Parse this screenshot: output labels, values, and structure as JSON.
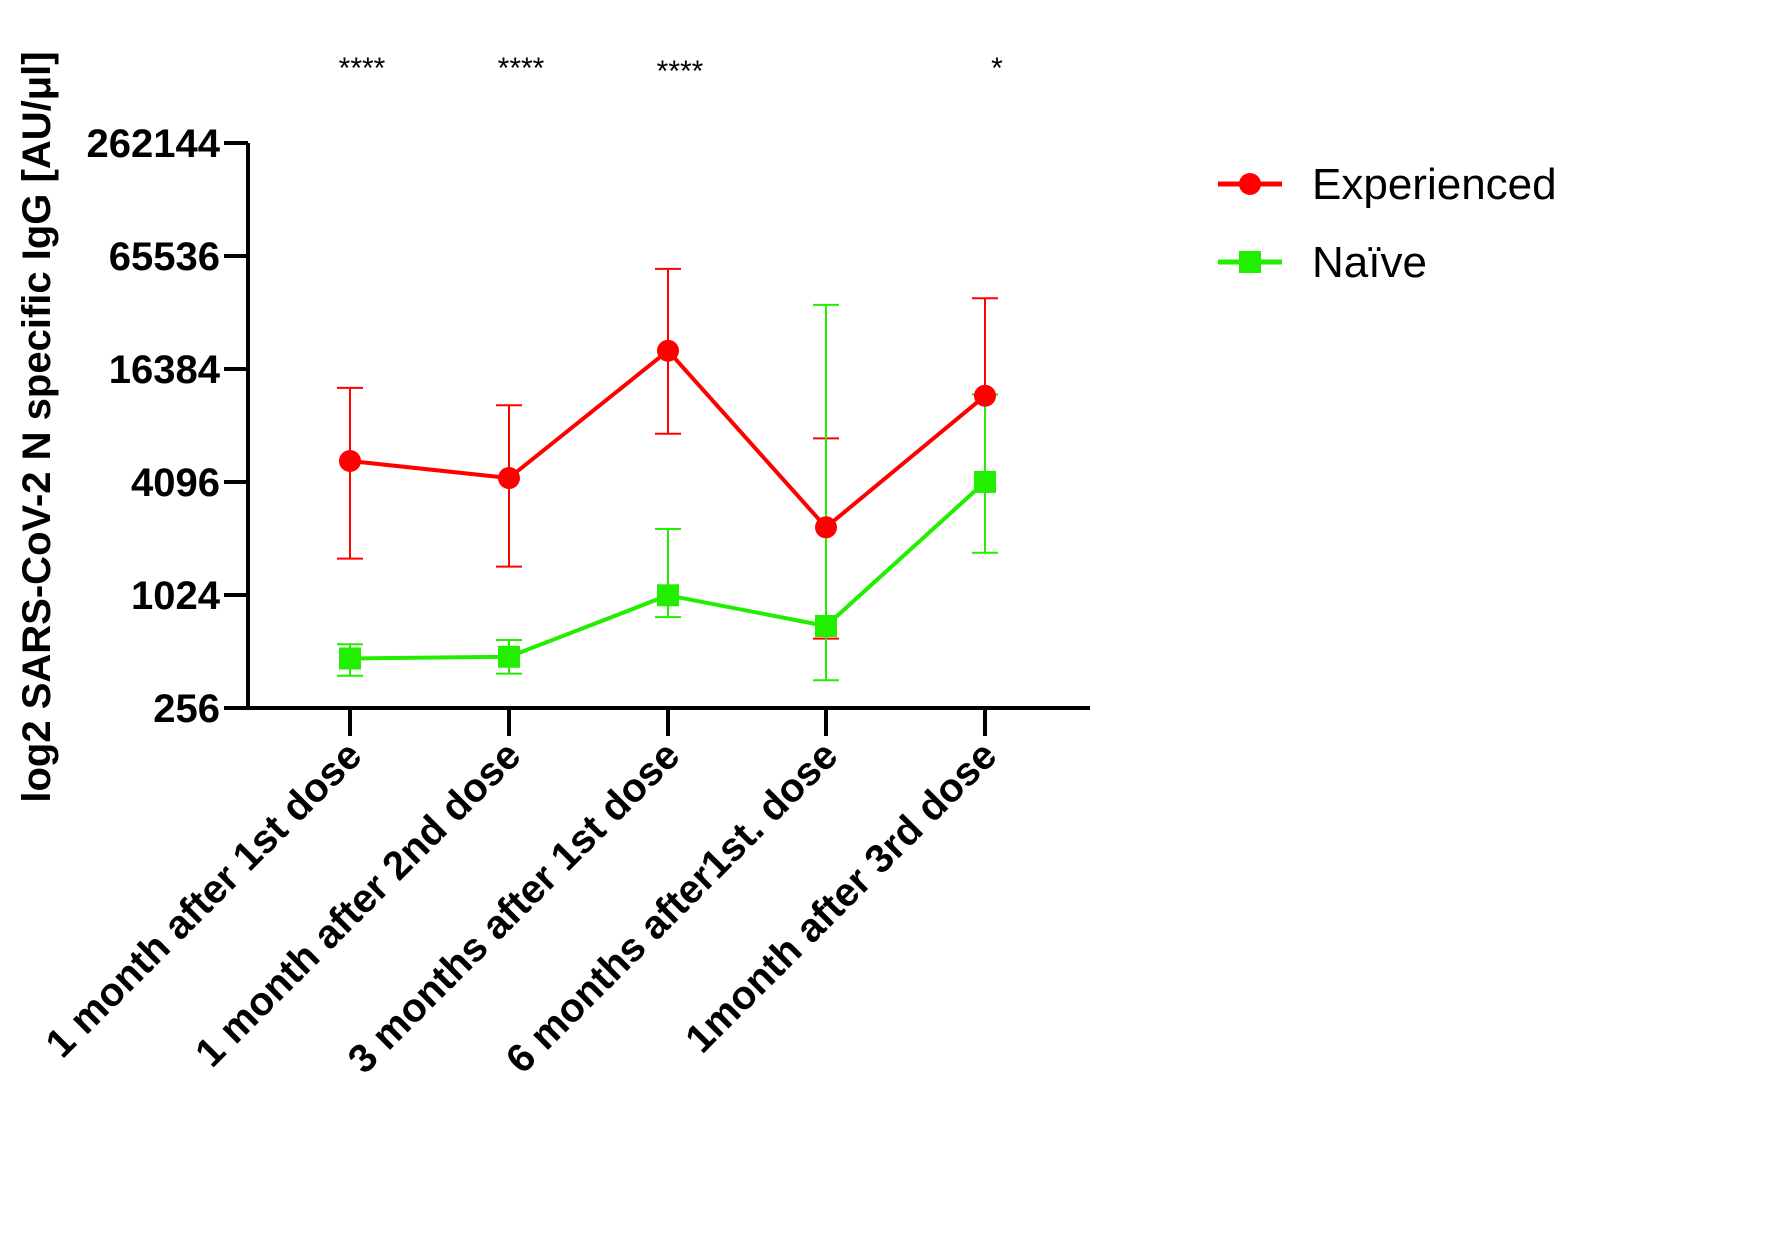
{
  "chart_data": {
    "type": "line",
    "title": "",
    "xlabel": "",
    "ylabel": "log2 SARS-CoV-2 N specific IgG [AU/μl]",
    "y_scale": "log2",
    "ylim": [
      256,
      262144
    ],
    "y_ticks": [
      "262144",
      "65536",
      "16384",
      "4096",
      "1024",
      "256"
    ],
    "y_tick_values": [
      262144,
      65536,
      16384,
      4096,
      1024,
      256
    ],
    "categories": [
      "1 month after 1st dose",
      "1 month after 2nd dose",
      "3 months after 1st dose",
      "6 months after1st. dose",
      "1month after 3rd dose"
    ],
    "significance": [
      "****",
      "****",
      "****",
      "",
      "*"
    ],
    "legend_position": "top-right",
    "grid": false,
    "series": [
      {
        "name": "Experienced",
        "color": "#ff0000",
        "marker": "circle",
        "values": [
          5300,
          4300,
          20500,
          2350,
          11800
        ],
        "error_upper": [
          13000,
          10500,
          56000,
          7000,
          39000
        ],
        "error_lower": [
          1600,
          1450,
          7400,
          600,
          12000
        ]
      },
      {
        "name": "Naïve",
        "color": "#22ee00",
        "marker": "square",
        "values": [
          470,
          480,
          1020,
          700,
          4100
        ],
        "error_upper": [
          560,
          590,
          2300,
          36000,
          12000
        ],
        "error_lower": [
          380,
          390,
          780,
          360,
          1720
        ]
      }
    ]
  }
}
